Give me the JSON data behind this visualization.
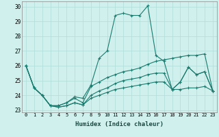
{
  "xlabel": "Humidex (Indice chaleur)",
  "ylabel": "",
  "xlim": [
    -0.5,
    23.5
  ],
  "ylim": [
    22.85,
    30.35
  ],
  "yticks": [
    23,
    24,
    25,
    26,
    27,
    28,
    29,
    30
  ],
  "xticks": [
    0,
    1,
    2,
    3,
    4,
    5,
    6,
    7,
    8,
    9,
    10,
    11,
    12,
    13,
    14,
    15,
    16,
    17,
    18,
    19,
    20,
    21,
    22,
    23
  ],
  "background_color": "#cff0ec",
  "grid_color": "#b0ddd8",
  "line_color": "#1a7a6e",
  "series": [
    [
      26.0,
      24.5,
      24.0,
      23.3,
      23.2,
      23.3,
      23.5,
      23.35,
      23.8,
      24.0,
      24.2,
      24.4,
      24.5,
      24.6,
      24.7,
      24.8,
      24.9,
      24.9,
      24.4,
      24.4,
      24.5,
      24.5,
      24.6,
      24.3
    ],
    [
      26.0,
      24.5,
      24.0,
      23.3,
      23.2,
      23.3,
      23.5,
      23.35,
      24.0,
      24.3,
      24.5,
      24.8,
      25.0,
      25.1,
      25.2,
      25.4,
      25.5,
      25.5,
      24.4,
      24.9,
      25.9,
      25.4,
      25.6,
      24.3
    ],
    [
      26.0,
      24.5,
      24.0,
      23.3,
      23.3,
      23.5,
      23.9,
      23.8,
      24.7,
      26.5,
      27.0,
      29.4,
      29.55,
      29.4,
      29.4,
      30.05,
      26.7,
      26.3,
      24.4,
      24.9,
      25.9,
      25.4,
      25.6,
      24.3
    ],
    [
      26.0,
      24.5,
      24.0,
      23.3,
      23.3,
      23.5,
      23.8,
      23.5,
      24.6,
      24.9,
      25.2,
      25.4,
      25.6,
      25.7,
      25.85,
      26.1,
      26.3,
      26.4,
      26.5,
      26.6,
      26.7,
      26.7,
      26.8,
      24.3
    ]
  ]
}
